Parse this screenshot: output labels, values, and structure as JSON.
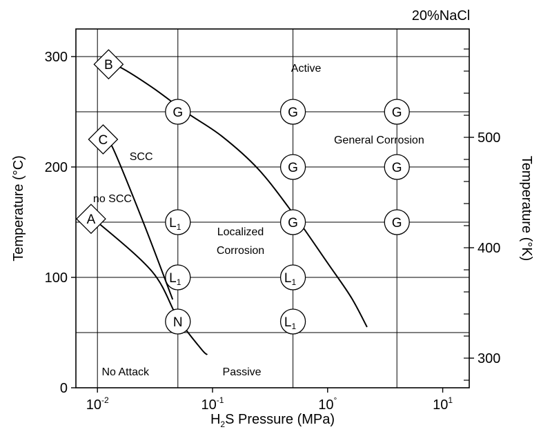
{
  "chart_data": {
    "type": "scatter",
    "title": "",
    "condition_label": "20%NaCl",
    "xlabel": {
      "prefix": "H",
      "subscript": "2",
      "suffix": "S Pressure (MPa)"
    },
    "ylabel_left": "Temperature (°C)",
    "ylabel_right": "Temperature (°K)",
    "x_scale": "log",
    "xlim": [
      0.0065,
      17
    ],
    "ylim": [
      0,
      325
    ],
    "y_right_ticks": [
      {
        "label": "300",
        "kelvin": 300
      },
      {
        "label": "400",
        "kelvin": 400
      },
      {
        "label": "500",
        "kelvin": 500
      }
    ],
    "x_ticks": [
      {
        "label": "10",
        "exp": "-2",
        "value": 0.01
      },
      {
        "label": "10",
        "exp": "-1",
        "value": 0.1
      },
      {
        "label": "10",
        "exp": "°",
        "value": 1
      },
      {
        "label": "10",
        "exp": "1",
        "value": 10
      }
    ],
    "y_ticks": [
      {
        "label": "0",
        "value": 0
      },
      {
        "label": "100",
        "value": 100
      },
      {
        "label": "200",
        "value": 200
      },
      {
        "label": "300",
        "value": 300
      }
    ],
    "grid": true,
    "grid_x": [
      0.01,
      0.05,
      0.5,
      4
    ],
    "grid_y": [
      50,
      100,
      150,
      200,
      250,
      300
    ],
    "points": [
      {
        "label": "G",
        "x": 0.05,
        "y": 250
      },
      {
        "label": "G",
        "x": 0.5,
        "y": 250
      },
      {
        "label": "G",
        "x": 4,
        "y": 250
      },
      {
        "label": "G",
        "x": 0.5,
        "y": 200
      },
      {
        "label": "G",
        "x": 4,
        "y": 200
      },
      {
        "label": "G",
        "x": 0.5,
        "y": 150
      },
      {
        "label": "G",
        "x": 4,
        "y": 150
      },
      {
        "label": "L",
        "sub": "1",
        "x": 0.05,
        "y": 150
      },
      {
        "label": "L",
        "sub": "1",
        "x": 0.05,
        "y": 100
      },
      {
        "label": "L",
        "sub": "1",
        "x": 0.5,
        "y": 100
      },
      {
        "label": "L",
        "sub": "1",
        "x": 0.5,
        "y": 60
      },
      {
        "label": "N",
        "x": 0.05,
        "y": 60
      }
    ],
    "reference_markers": [
      {
        "label": "B",
        "x": 0.0125,
        "y": 293
      },
      {
        "label": "C",
        "x": 0.0112,
        "y": 225
      },
      {
        "label": "A",
        "x": 0.0088,
        "y": 153
      }
    ],
    "curves": [
      {
        "from": "B",
        "points": [
          [
            0.016,
            290
          ],
          [
            0.03,
            272
          ],
          [
            0.06,
            249
          ],
          [
            0.12,
            228
          ],
          [
            0.25,
            198
          ],
          [
            0.5,
            158
          ],
          [
            1.0,
            113
          ],
          [
            1.6,
            82
          ],
          [
            2.2,
            55
          ]
        ]
      },
      {
        "from": "A",
        "points": [
          [
            0.01,
            150
          ],
          [
            0.03,
            105
          ],
          [
            0.05,
            63
          ],
          [
            0.08,
            35
          ],
          [
            0.09,
            30
          ]
        ]
      },
      {
        "from": "C",
        "points": [
          [
            0.0135,
            218
          ],
          [
            0.025,
            150
          ],
          [
            0.045,
            80
          ]
        ]
      }
    ],
    "annotations": [
      {
        "text": "Active",
        "x": 0.65,
        "y": 290
      },
      {
        "text": "General Corrosion",
        "x": 2.8,
        "y": 225
      },
      {
        "text": "SCC",
        "x": 0.024,
        "y": 210
      },
      {
        "text": "no SCC",
        "x": 0.0135,
        "y": 172
      },
      {
        "text": "Localized",
        "x": 0.175,
        "y": 142
      },
      {
        "text": "Corrosion",
        "x": 0.175,
        "y": 125
      },
      {
        "text": "No Attack",
        "x": 0.0175,
        "y": 15
      },
      {
        "text": "Passive",
        "x": 0.18,
        "y": 15
      }
    ]
  }
}
